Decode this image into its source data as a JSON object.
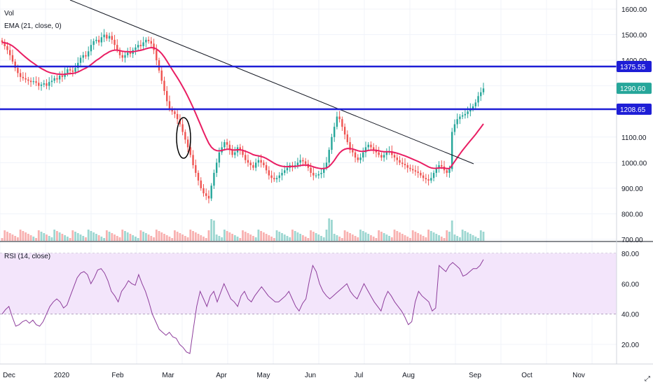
{
  "main_pane": {
    "legend": [
      "Vol",
      "EMA (21, close, 0)"
    ],
    "price_ticks": [
      "1600.00",
      "1500.00",
      "1400.00",
      "1300.00",
      "1100.00",
      "1000.00",
      "900.00",
      "800.00",
      "700.00"
    ],
    "price_tick_values": [
      1600,
      1500,
      1400,
      1300,
      1100,
      1000,
      900,
      800,
      700
    ],
    "tags": [
      {
        "text": "1375.55",
        "bg": "#1e1ed6",
        "fg": "#ffffff",
        "value": 1375.55
      },
      {
        "text": "1290.60",
        "bg": "#26a69a",
        "fg": "#ffffff",
        "value": 1290.6
      },
      {
        "text": "1208.65",
        "bg": "#1e1ed6",
        "fg": "#ffffff",
        "value": 1208.65
      }
    ]
  },
  "rsi_pane": {
    "legend": "RSI (14, close)",
    "ticks": [
      "80.00",
      "60.00",
      "40.00",
      "20.00"
    ],
    "tick_values": [
      80,
      60,
      40,
      20
    ],
    "band_color": "#f3e5fb",
    "line_color": "#8e3e9c"
  },
  "time_axis": [
    "Dec",
    "2020",
    "Feb",
    "Mar",
    "Apr",
    "May",
    "Jun",
    "Jul",
    "Aug",
    "Sep",
    "Oct",
    "Nov"
  ],
  "colors": {
    "up": "#26a69a",
    "down": "#ef5350",
    "ema": "#e91e63",
    "hline": "#1e1ed6",
    "trend": "#131722",
    "grid": "#f0f3fa"
  },
  "chart_data": [
    {
      "type": "candlestick",
      "title": "",
      "ylim": [
        700,
        1650
      ],
      "horizontal_levels": [
        1375.55,
        1208.65
      ],
      "last_price": 1290.6,
      "ema_period": 21,
      "close_series": [
        1470,
        1455,
        1440,
        1420,
        1395,
        1370,
        1350,
        1335,
        1330,
        1325,
        1320,
        1315,
        1318,
        1312,
        1300,
        1305,
        1310,
        1300,
        1315,
        1320,
        1330,
        1325,
        1340,
        1335,
        1350,
        1365,
        1360,
        1355,
        1370,
        1390,
        1410,
        1420,
        1415,
        1435,
        1460,
        1475,
        1480,
        1470,
        1490,
        1500,
        1485,
        1495,
        1480,
        1460,
        1440,
        1420,
        1410,
        1420,
        1430,
        1425,
        1440,
        1450,
        1460,
        1455,
        1470,
        1480,
        1475,
        1465,
        1440,
        1400,
        1360,
        1320,
        1280,
        1240,
        1210,
        1200,
        1190,
        1170,
        1150,
        1120,
        1090,
        1060,
        1030,
        990,
        960,
        930,
        900,
        880,
        870,
        860,
        910,
        960,
        1000,
        1040,
        1060,
        1080,
        1070,
        1050,
        1030,
        1040,
        1060,
        1050,
        1030,
        1010,
        1000,
        990,
        980,
        1000,
        1010,
        1000,
        990,
        970,
        950,
        940,
        935,
        940,
        950,
        960,
        970,
        980,
        990,
        985,
        990,
        1000,
        1010,
        1005,
        995,
        980,
        960,
        950,
        950,
        955,
        960,
        980,
        1000,
        1050,
        1100,
        1140,
        1180,
        1170,
        1140,
        1110,
        1080,
        1050,
        1040,
        1020,
        1010,
        1020,
        1040,
        1060,
        1070,
        1060,
        1050,
        1040,
        1030,
        1020,
        1030,
        1040,
        1045,
        1030,
        1020,
        1010,
        1000,
        995,
        990,
        980,
        975,
        970,
        965,
        960,
        950,
        940,
        935,
        930,
        940,
        960,
        980,
        990,
        985,
        970,
        960,
        975,
        1120,
        1150,
        1170,
        1180,
        1185,
        1190,
        1200,
        1210,
        1220,
        1235,
        1260,
        1275,
        1290
      ]
    },
    {
      "type": "line",
      "title": "RSI (14, close)",
      "ylim": [
        10,
        82
      ],
      "band": [
        40,
        80
      ],
      "values": [
        40,
        43,
        45,
        38,
        32,
        33,
        35,
        36,
        34,
        36,
        33,
        32,
        35,
        40,
        45,
        48,
        50,
        48,
        44,
        46,
        52,
        58,
        64,
        67,
        68,
        66,
        60,
        64,
        69,
        70,
        67,
        62,
        55,
        52,
        48,
        55,
        58,
        62,
        60,
        59,
        66,
        60,
        55,
        48,
        40,
        35,
        30,
        28,
        26,
        28,
        25,
        24,
        20,
        18,
        15,
        14,
        30,
        45,
        55,
        50,
        45,
        52,
        55,
        48,
        54,
        60,
        55,
        50,
        48,
        45,
        52,
        55,
        50,
        48,
        52,
        55,
        58,
        55,
        52,
        50,
        48,
        48,
        50,
        52,
        55,
        50,
        45,
        42,
        47,
        50,
        62,
        72,
        68,
        60,
        55,
        52,
        50,
        52,
        54,
        56,
        58,
        60,
        55,
        52,
        50,
        55,
        60,
        56,
        52,
        48,
        45,
        42,
        50,
        55,
        52,
        48,
        45,
        42,
        38,
        33,
        35,
        48,
        55,
        52,
        50,
        48,
        42,
        44,
        72,
        70,
        68,
        72,
        74,
        72,
        70,
        65,
        66,
        68,
        70,
        70,
        72,
        76
      ]
    }
  ]
}
